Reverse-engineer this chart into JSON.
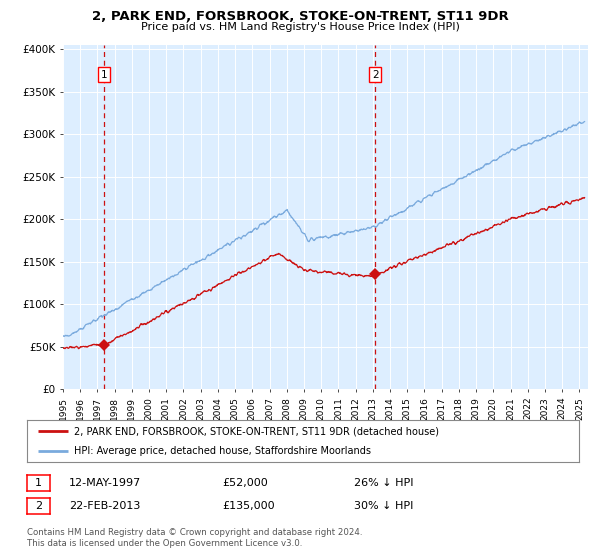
{
  "title": "2, PARK END, FORSBROOK, STOKE-ON-TRENT, ST11 9DR",
  "subtitle": "Price paid vs. HM Land Registry's House Price Index (HPI)",
  "ylim": [
    0,
    400000
  ],
  "xlim_start": 1995.0,
  "xlim_end": 2025.5,
  "sale1_date": 1997.37,
  "sale1_price": 52000,
  "sale1_label": "1",
  "sale1_text": "12-MAY-1997",
  "sale1_amount": "£52,000",
  "sale1_hpi": "26% ↓ HPI",
  "sale2_date": 2013.13,
  "sale2_price": 135000,
  "sale2_label": "2",
  "sale2_text": "22-FEB-2013",
  "sale2_amount": "£135,000",
  "sale2_hpi": "30% ↓ HPI",
  "legend_line1": "2, PARK END, FORSBROOK, STOKE-ON-TRENT, ST11 9DR (detached house)",
  "legend_line2": "HPI: Average price, detached house, Staffordshire Moorlands",
  "footnote": "Contains HM Land Registry data © Crown copyright and database right 2024.\nThis data is licensed under the Open Government Licence v3.0.",
  "hpi_color": "#7aaadd",
  "price_color": "#cc1111",
  "plot_bg": "#ddeeff"
}
